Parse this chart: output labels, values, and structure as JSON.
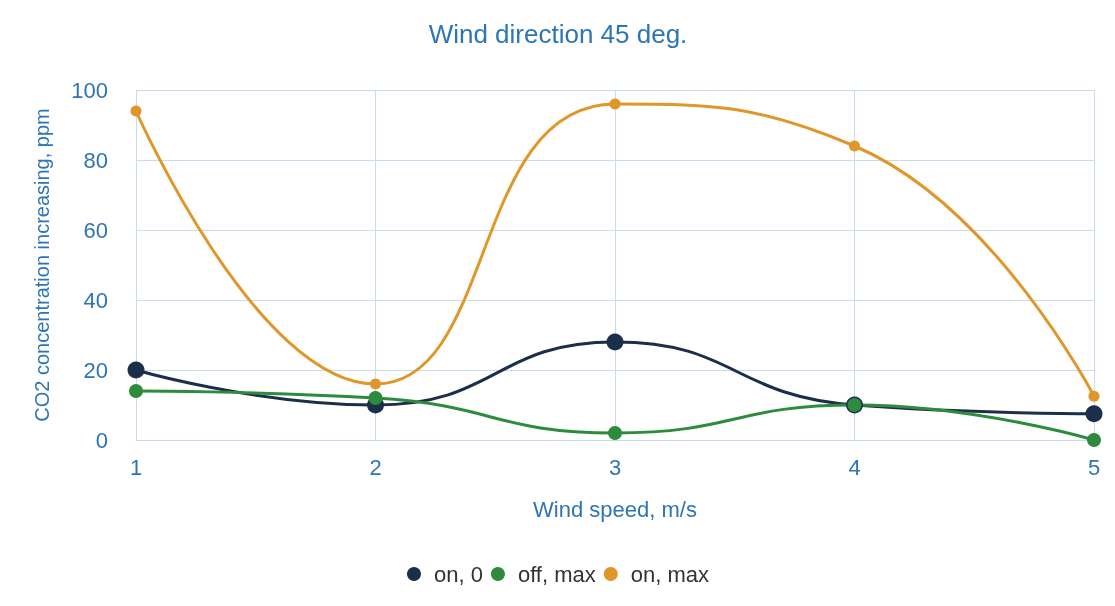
{
  "chart_data": {
    "type": "line",
    "title": "Wind direction 45 deg.",
    "xlabel": "Wind speed, m/s",
    "ylabel": "CO2 concentration increasing, ppm",
    "x": [
      1,
      2,
      3,
      4,
      5
    ],
    "xlim": [
      1,
      5
    ],
    "xticks": [
      1,
      2,
      3,
      4,
      5
    ],
    "ylim": [
      0,
      100
    ],
    "yticks": [
      0,
      20,
      40,
      60,
      80,
      100
    ],
    "grid": true,
    "legend": "bottom",
    "marker": "circle",
    "series": [
      {
        "name": "on, 0",
        "color": "#1b2f4a",
        "values": [
          20,
          10,
          28,
          10,
          7.5
        ]
      },
      {
        "name": "off, max",
        "color": "#2e8b3e",
        "values": [
          14,
          12,
          2,
          10,
          0
        ]
      },
      {
        "name": "on, max",
        "color": "#e0972a",
        "values": [
          94,
          16,
          96,
          84,
          12.5
        ]
      }
    ]
  }
}
